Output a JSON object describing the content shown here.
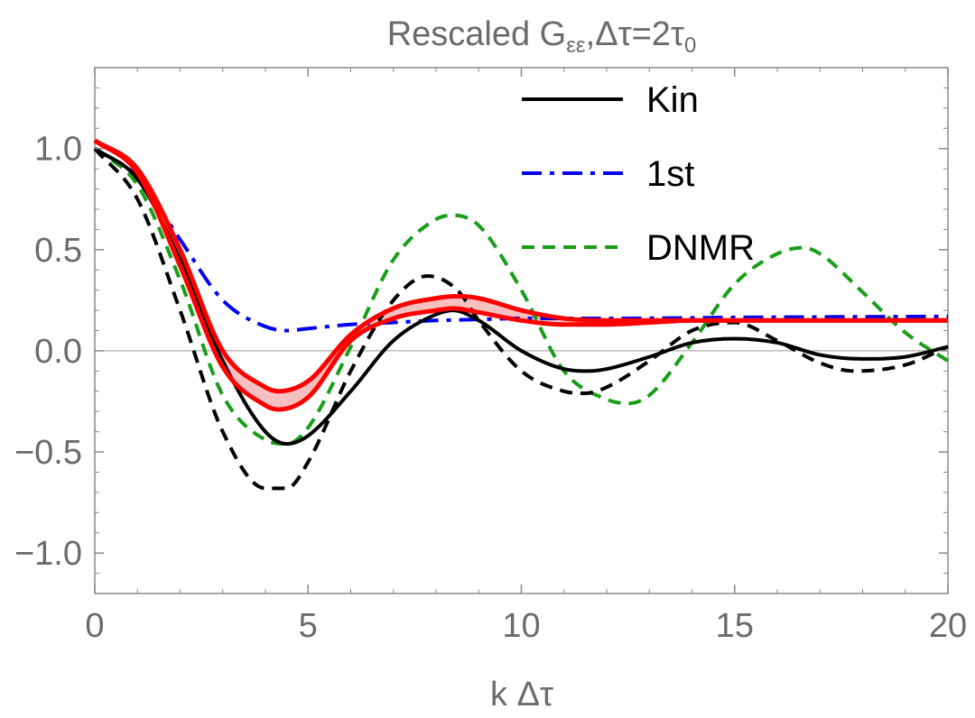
{
  "chart_data": {
    "type": "line",
    "title": "Rescaled G",
    "title_subscript": "εε",
    "title_suffix": ",Δτ=2τ",
    "title_suffix_subscript": "0",
    "xlabel": "k Δτ",
    "ylabel": "",
    "xlim": [
      0,
      20
    ],
    "ylim": [
      -1.2,
      1.4
    ],
    "x_ticks": [
      {
        "value": 0,
        "label": "0"
      },
      {
        "value": 5,
        "label": "5"
      },
      {
        "value": 10,
        "label": "10"
      },
      {
        "value": 15,
        "label": "15"
      },
      {
        "value": 20,
        "label": "20"
      }
    ],
    "y_ticks": [
      {
        "value": 1.0,
        "label": "1.0"
      },
      {
        "value": 0.5,
        "label": "0.5"
      },
      {
        "value": 0.0,
        "label": "0.0"
      },
      {
        "value": -0.5,
        "label": "−0.5"
      },
      {
        "value": -1.0,
        "label": "−1.0"
      }
    ],
    "legend_position": "top-right",
    "series": [
      {
        "name": "Kin",
        "key": "kin",
        "legend": true,
        "color": "#000000",
        "dash": "solid",
        "x": [
          0,
          1,
          2,
          3,
          4,
          4.5,
          5,
          6,
          7,
          8,
          8.4,
          9,
          10,
          11,
          11.6,
          12,
          13,
          14,
          15,
          16,
          17,
          18,
          19,
          20
        ],
        "y": [
          1.0,
          0.85,
          0.45,
          -0.05,
          -0.4,
          -0.46,
          -0.42,
          -0.2,
          0.05,
          0.18,
          0.2,
          0.15,
          0.0,
          -0.09,
          -0.1,
          -0.09,
          -0.03,
          0.04,
          0.06,
          0.04,
          -0.02,
          -0.04,
          -0.03,
          0.02
        ]
      },
      {
        "name": "1st",
        "key": "first",
        "legend": true,
        "color": "#0000ee",
        "dash": "dashdot",
        "x": [
          0,
          1,
          2,
          3,
          4,
          4.5,
          5,
          6,
          7,
          8,
          9,
          10,
          12,
          15,
          20
        ],
        "y": [
          1.0,
          0.86,
          0.55,
          0.25,
          0.12,
          0.1,
          0.11,
          0.13,
          0.14,
          0.15,
          0.155,
          0.16,
          0.16,
          0.165,
          0.17
        ]
      },
      {
        "name": "DNMR",
        "key": "dnmr",
        "legend": true,
        "color": "#1a9e1a",
        "dash": "dashed",
        "x": [
          0,
          1,
          2,
          3,
          4,
          4.5,
          5,
          6,
          7,
          8,
          8.4,
          9,
          10,
          11,
          12,
          12.5,
          13,
          14,
          15,
          16,
          16.6,
          17,
          18,
          19,
          20
        ],
        "y": [
          1.0,
          0.82,
          0.35,
          -0.22,
          -0.44,
          -0.46,
          -0.38,
          0.02,
          0.45,
          0.65,
          0.67,
          0.62,
          0.3,
          -0.1,
          -0.24,
          -0.26,
          -0.22,
          0.04,
          0.33,
          0.48,
          0.51,
          0.48,
          0.29,
          0.09,
          -0.05
        ]
      },
      {
        "name": "Kin (dashed)",
        "key": "kin_dashed",
        "legend": false,
        "color": "#000000",
        "dash": "dashed",
        "x": [
          0,
          1,
          2,
          3,
          4,
          4.5,
          5,
          6,
          7,
          7.8,
          8.5,
          9,
          10,
          11,
          11.5,
          12,
          13,
          14,
          15,
          16,
          17,
          17.8,
          19,
          20
        ],
        "y": [
          1.0,
          0.75,
          0.2,
          -0.4,
          -0.68,
          -0.68,
          -0.55,
          -0.1,
          0.25,
          0.37,
          0.3,
          0.15,
          -0.1,
          -0.2,
          -0.21,
          -0.18,
          -0.05,
          0.1,
          0.14,
          0.05,
          -0.06,
          -0.1,
          -0.07,
          0.02
        ]
      },
      {
        "name": "Band upper",
        "key": "band_upper",
        "legend": false,
        "color": "#ff0000",
        "dash": "solid",
        "x": [
          0,
          1,
          2,
          3,
          4,
          4.3,
          5,
          6,
          7,
          8,
          8.5,
          9,
          10,
          11,
          12,
          14,
          16,
          20
        ],
        "y": [
          1.04,
          0.9,
          0.5,
          0.0,
          -0.18,
          -0.2,
          -0.15,
          0.08,
          0.21,
          0.26,
          0.27,
          0.26,
          0.2,
          0.16,
          0.15,
          0.15,
          0.15,
          0.15
        ]
      },
      {
        "name": "Band lower",
        "key": "band_lower",
        "legend": false,
        "color": "#ff0000",
        "dash": "solid",
        "x": [
          0,
          1,
          2,
          3,
          4,
          4.3,
          5,
          6,
          7,
          8,
          8.4,
          9,
          10,
          11,
          12,
          13,
          14,
          16,
          20
        ],
        "y": [
          1.04,
          0.88,
          0.42,
          -0.08,
          -0.27,
          -0.29,
          -0.23,
          0.05,
          0.16,
          0.2,
          0.21,
          0.19,
          0.15,
          0.13,
          0.13,
          0.14,
          0.15,
          0.15,
          0.15
        ]
      }
    ],
    "band": {
      "upper": "band_upper",
      "lower": "band_lower",
      "fill": "#f7c0c0"
    }
  }
}
